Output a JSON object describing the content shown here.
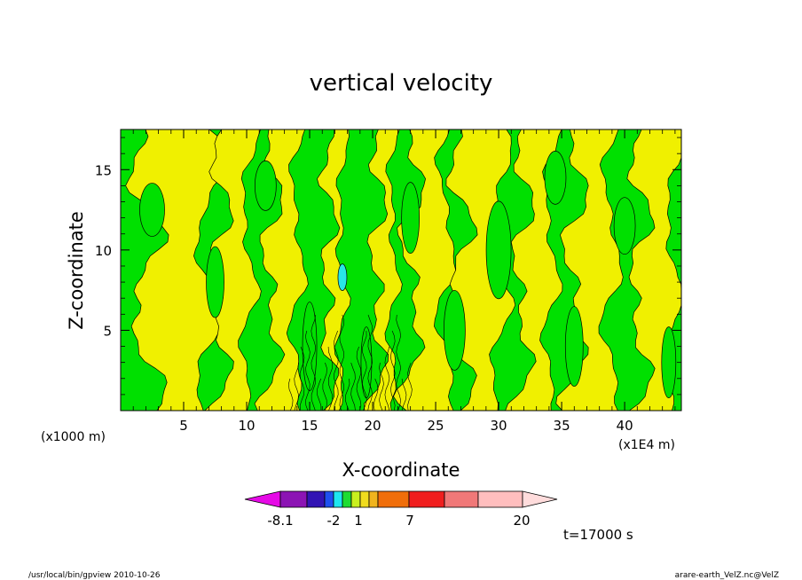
{
  "chart_data": {
    "type": "heatmap",
    "title": "vertical velocity",
    "xlabel": "X-coordinate",
    "ylabel": "Z-coordinate",
    "x_tick_labels": [
      "5",
      "10",
      "15",
      "20",
      "25",
      "30",
      "35",
      "40"
    ],
    "x_ticks": [
      5,
      10,
      15,
      20,
      25,
      30,
      35,
      40
    ],
    "y_tick_labels": [
      "5",
      "10",
      "15"
    ],
    "y_ticks": [
      5,
      10,
      15
    ],
    "xlim": [
      0,
      44.5
    ],
    "ylim": [
      0,
      17.5
    ],
    "y_unit_label": "(x1000 m)",
    "x_unit_label": "(x1E4 m)",
    "time_label": "t=17000 s",
    "colorbar": {
      "levels_labeled": [
        "-8.1",
        "-2",
        "1",
        "7",
        "20"
      ],
      "colors": [
        "#e60ae6",
        "#8c14b4",
        "#3214b4",
        "#1e50f0",
        "#1ee6f0",
        "#1edc32",
        "#c8f01e",
        "#f0dc1e",
        "#f0b41e",
        "#f06e0a",
        "#f01e1e",
        "#f07878",
        "#ffbebe",
        "#ffdcdc"
      ]
    },
    "field_colors": {
      "green": "#00e000",
      "yellow": "#f0f000",
      "cyan": "#28e6e6"
    },
    "footer_left": "/usr/local/bin/gpview   2010-10-26",
    "footer_right": "arare-earth_VelZ.nc@VelZ"
  }
}
